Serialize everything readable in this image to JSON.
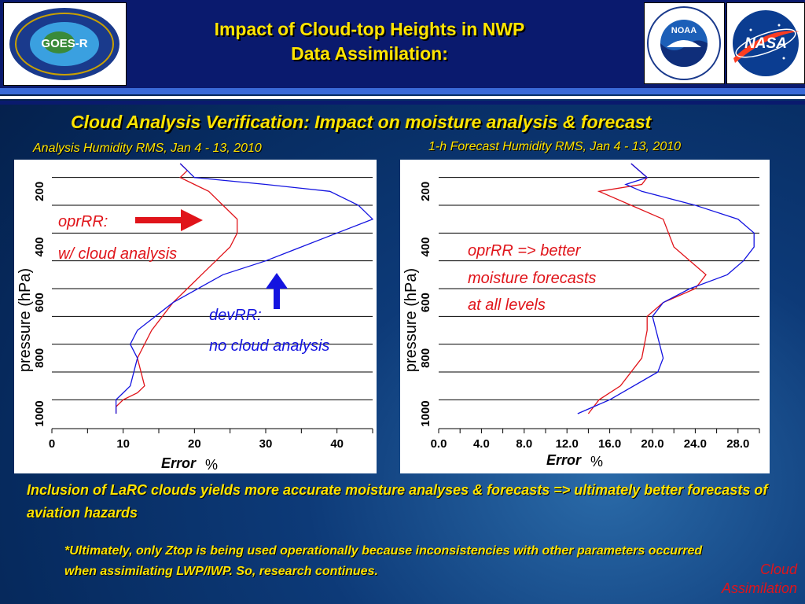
{
  "header": {
    "title_line1": "Impact of Cloud-top Heights in NWP",
    "title_line2": "Data Assimilation:",
    "goes_logo": {
      "icon": "goes-r-logo-icon",
      "text": "GOES-R",
      "ring_text": "GEOSTATIONARY OPERATIONAL ENVIRONMENTAL SATELLITE - R SERIES",
      "bottom_text": "NOAA · NASA"
    },
    "noaa_logo": {
      "icon": "noaa-logo-icon",
      "text": "NOAA",
      "ring_text": "NATIONAL OCEANIC AND ATMOSPHERIC ADMINISTRATION · U.S. DEPARTMENT OF COMMERCE"
    },
    "nasa_logo": {
      "icon": "nasa-logo-icon",
      "text": "NASA"
    }
  },
  "subtitle": "Cloud Analysis Verification: Impact on moisture analysis & forecast",
  "annotations": {
    "opr_label": "oprRR:",
    "opr_desc": "w/ cloud analysis",
    "dev_label": "devRR:",
    "dev_desc": "no cloud analysis",
    "forecast_line1": "oprRR => better",
    "forecast_line2": "moisture forecasts",
    "forecast_line3": "at all levels"
  },
  "bottom_text": "Inclusion of LaRC clouds yields more accurate moisture analyses & forecasts => ultimately better forecasts of aviation hazards",
  "note_text": "*Ultimately, only Ztop is being used operationally because inconsistencies with other parameters occurred when assimilating LWP/IWP.  So, research continues.",
  "corner_label_line1": "Cloud",
  "corner_label_line2": "Assimilation",
  "colors": {
    "accent_yellow": "#ffe400",
    "opr_red": "#e0141a",
    "dev_blue": "#1414e0",
    "bg_navy": "#0a1a6e"
  },
  "chart_data": [
    {
      "type": "line",
      "title": "Analysis Humidity RMS, Jan 4 - 13, 2010",
      "xlabel": "Error",
      "xlabel_unit": "%",
      "ylabel": "pressure (hPa)",
      "xlim": [
        0,
        45
      ],
      "ylim": [
        1000,
        100
      ],
      "xticks": [
        0,
        10,
        20,
        30,
        40
      ],
      "xtick_labels": [
        "0",
        "10",
        "20",
        "30",
        "40"
      ],
      "yticks": [
        200,
        400,
        600,
        800,
        1000
      ],
      "grid": true,
      "series": [
        {
          "name": "oprRR",
          "color": "#e0141a",
          "points": [
            [
              18,
              100
            ],
            [
              19,
              125
            ],
            [
              18,
              150
            ],
            [
              20,
              175
            ],
            [
              22,
              200
            ],
            [
              24,
              250
            ],
            [
              26,
              300
            ],
            [
              26,
              350
            ],
            [
              25,
              400
            ],
            [
              23,
              450
            ],
            [
              21,
              500
            ],
            [
              19,
              550
            ],
            [
              17,
              600
            ],
            [
              14,
              700
            ],
            [
              12,
              800
            ],
            [
              13,
              900
            ],
            [
              12,
              925
            ],
            [
              10,
              950
            ],
            [
              9,
              975
            ],
            [
              9,
              1000
            ]
          ]
        },
        {
          "name": "devRR",
          "color": "#1414e0",
          "points": [
            [
              18,
              100
            ],
            [
              19,
              125
            ],
            [
              20,
              150
            ],
            [
              30,
              175
            ],
            [
              39,
              200
            ],
            [
              43,
              250
            ],
            [
              45,
              300
            ],
            [
              40,
              350
            ],
            [
              35,
              400
            ],
            [
              30,
              450
            ],
            [
              24,
              500
            ],
            [
              17,
              600
            ],
            [
              12,
              700
            ],
            [
              11,
              750
            ],
            [
              12,
              800
            ],
            [
              11,
              900
            ],
            [
              10,
              925
            ],
            [
              9,
              950
            ],
            [
              9,
              975
            ],
            [
              9,
              1000
            ]
          ]
        }
      ]
    },
    {
      "type": "line",
      "title": "1-h Forecast Humidity RMS, Jan 4 - 13, 2010",
      "xlabel": "Error",
      "xlabel_unit": "%",
      "ylabel": "pressure (hPa)",
      "xlim": [
        0,
        30
      ],
      "ylim": [
        1000,
        100
      ],
      "xticks": [
        0,
        4,
        8,
        12,
        16,
        20,
        24,
        28
      ],
      "xtick_labels": [
        "0.0",
        "4.0",
        "8.0",
        "12.0",
        "16.0",
        "20.0",
        "24.0",
        "28.0"
      ],
      "yticks": [
        200,
        400,
        600,
        800,
        1000
      ],
      "grid": true,
      "series": [
        {
          "name": "oprRR",
          "color": "#e0141a",
          "points": [
            [
              18,
              100
            ],
            [
              19.5,
              150
            ],
            [
              19,
              175
            ],
            [
              15,
              200
            ],
            [
              18,
              250
            ],
            [
              21,
              300
            ],
            [
              22,
              400
            ],
            [
              25,
              500
            ],
            [
              24,
              550
            ],
            [
              21,
              600
            ],
            [
              19.5,
              650
            ],
            [
              19.5,
              700
            ],
            [
              19,
              800
            ],
            [
              17,
              900
            ],
            [
              15,
              950
            ],
            [
              14,
              1000
            ]
          ]
        },
        {
          "name": "devRR",
          "color": "#1414e0",
          "points": [
            [
              18,
              100
            ],
            [
              19.5,
              150
            ],
            [
              17.5,
              175
            ],
            [
              19,
              200
            ],
            [
              24,
              250
            ],
            [
              28,
              300
            ],
            [
              29.5,
              350
            ],
            [
              29.5,
              400
            ],
            [
              28.5,
              450
            ],
            [
              27,
              500
            ],
            [
              23.5,
              550
            ],
            [
              21,
              600
            ],
            [
              20,
              650
            ],
            [
              21,
              800
            ],
            [
              20.5,
              850
            ],
            [
              16,
              950
            ],
            [
              13,
              1000
            ]
          ]
        }
      ]
    }
  ]
}
